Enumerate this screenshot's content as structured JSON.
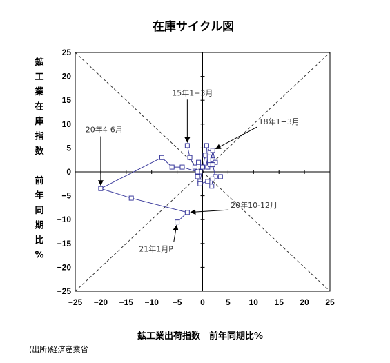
{
  "chart_data": {
    "type": "scatter",
    "title": "在庫サイクル図",
    "xlabel": "鉱工業出荷指数　前年同期比%",
    "ylabel_chars": [
      "鉱",
      "工",
      "業",
      "在",
      "庫",
      "指",
      "数",
      "",
      "前",
      "年",
      "同",
      "期",
      "比",
      "%"
    ],
    "xlim": [
      -25,
      25
    ],
    "ylim": [
      -25,
      25
    ],
    "xticks": [
      -25,
      -20,
      -15,
      -10,
      -5,
      0,
      5,
      10,
      15,
      20,
      25
    ],
    "yticks": [
      -25,
      -20,
      -15,
      -10,
      -5,
      0,
      5,
      10,
      15,
      20,
      25
    ],
    "grid": false,
    "diagonals": true,
    "series": [
      {
        "color": "#3a3a9c",
        "points": [
          [
            -3.0,
            5.5
          ],
          [
            -2.5,
            3.0
          ],
          [
            -1.5,
            1.0
          ],
          [
            -0.8,
            2.0
          ],
          [
            0.0,
            1.0
          ],
          [
            -0.5,
            0.0
          ],
          [
            -1.0,
            -1.0
          ],
          [
            -0.5,
            -2.0
          ],
          [
            0.5,
            3.5
          ],
          [
            1.0,
            1.0
          ],
          [
            0.8,
            5.5
          ],
          [
            1.5,
            4.0
          ],
          [
            2.0,
            2.5
          ],
          [
            1.5,
            1.5
          ],
          [
            2.0,
            4.5
          ],
          [
            2.5,
            2.0
          ],
          [
            2.0,
            1.5
          ],
          [
            2.5,
            -1.0
          ],
          [
            3.5,
            -1.0
          ],
          [
            2.0,
            -1.5
          ],
          [
            1.8,
            -3.0
          ],
          [
            1.0,
            -2.0
          ],
          [
            -0.5,
            -2.5
          ],
          [
            -1.0,
            0.0
          ],
          [
            -4.0,
            1.0
          ],
          [
            -6.0,
            1.0
          ],
          [
            -8.0,
            3.0
          ],
          [
            -20.0,
            -3.5
          ],
          [
            -14.0,
            -5.5
          ],
          [
            -3.0,
            -8.5
          ],
          [
            -5.0,
            -10.5
          ]
        ]
      }
    ],
    "annotations": [
      {
        "text": "15年1−3月",
        "x": -6.0,
        "y": 16.0,
        "target": [
          -3.0,
          5.5
        ]
      },
      {
        "text": "18年1−3月",
        "x": 11.0,
        "y": 10.0,
        "target": [
          2.0,
          4.5
        ]
      },
      {
        "text": "20年4-6月",
        "x": -23.0,
        "y": 8.3,
        "target": [
          -20.0,
          -3.5
        ]
      },
      {
        "text": "20年10-12月",
        "x": 5.5,
        "y": -7.5,
        "target": [
          -3.0,
          -8.5
        ]
      },
      {
        "text": "21年1月P",
        "x": -12.5,
        "y": -16.7,
        "target": [
          -5.0,
          -10.5
        ]
      }
    ],
    "source": "(出所)経済産業省"
  }
}
